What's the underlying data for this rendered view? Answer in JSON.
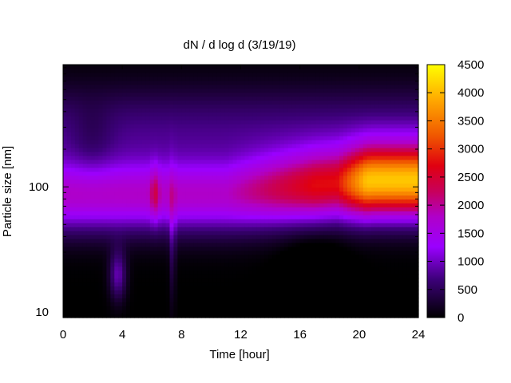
{
  "chart_data": {
    "type": "heatmap",
    "title": "dN / d log d (3/19/19)",
    "xlabel": "Time [hour]",
    "ylabel": "Particle size [nm]",
    "xlim": [
      0,
      24
    ],
    "ylim": [
      9,
      950
    ],
    "y_scale": "log",
    "x_ticks": [
      "0",
      "4",
      "8",
      "12",
      "16",
      "20",
      "24"
    ],
    "y_ticks": [
      "10",
      "100"
    ],
    "colorbar": {
      "range": [
        0,
        4500
      ],
      "ticks": [
        "0",
        "500",
        "1000",
        "1500",
        "2000",
        "2500",
        "3000",
        "3500",
        "4000",
        "4500"
      ],
      "palette": [
        "#000000",
        "#5a00a0",
        "#9a00ff",
        "#c0007a",
        "#e0000f",
        "#f06000",
        "#ffb000",
        "#ffff00"
      ]
    },
    "approximate_features": [
      {
        "time_range": [
          0,
          11
        ],
        "size_nm": 85,
        "value": 1900,
        "description": "persistent mode near 80-90 nm"
      },
      {
        "time_range": [
          6,
          6.4
        ],
        "size_nm": 85,
        "value": 2400,
        "description": "brief intense burst"
      },
      {
        "time_range": [
          12,
          18
        ],
        "size_nm": 95,
        "value": 2700,
        "description": "growing accumulation mode"
      },
      {
        "time_range": [
          20,
          24
        ],
        "size_nm": 110,
        "value": 3900,
        "description": "peak concentration"
      },
      {
        "time_range": [
          3.3,
          4.2
        ],
        "size_nm": 20,
        "value": 1100,
        "description": "small-particle feature"
      }
    ]
  }
}
